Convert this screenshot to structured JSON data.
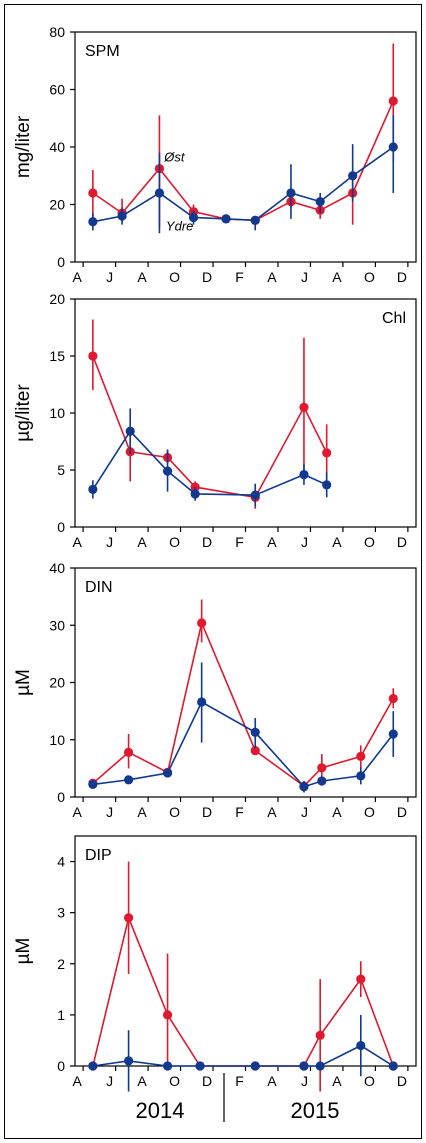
{
  "colors": {
    "ost": "#e0192f",
    "ydre": "#11398f",
    "axis": "#000000"
  },
  "year_labels": [
    "2014",
    "2015"
  ],
  "chart_data": [
    {
      "type": "line",
      "title": "SPM",
      "ylabel": "mg/liter",
      "ylim": [
        0,
        80
      ],
      "yticks": [
        0,
        20,
        40,
        60,
        80
      ],
      "xlim": [
        0,
        18.6
      ],
      "xticks": [
        {
          "x": 0.5,
          "label": "A"
        },
        {
          "x": 2.5,
          "label": "J"
        },
        {
          "x": 4.5,
          "label": "A"
        },
        {
          "x": 6.5,
          "label": "O"
        },
        {
          "x": 8.5,
          "label": "D"
        },
        {
          "x": 10.5,
          "label": "F"
        },
        {
          "x": 12.5,
          "label": "A"
        },
        {
          "x": 14.5,
          "label": "J"
        },
        {
          "x": 16.5,
          "label": "A"
        },
        {
          "x": 18.5,
          "label": "O"
        },
        {
          "x": 20.5,
          "label": "D"
        }
      ],
      "annotations": [
        {
          "text": "Øst",
          "x": 5.5,
          "y": 35
        },
        {
          "text": "Ydre",
          "x": 5.6,
          "y": 11
        }
      ],
      "series": [
        {
          "name": "Øst",
          "color": "#e0192f",
          "x": [
            1.1,
            2.9,
            5.2,
            7.3,
            9.3,
            11.1,
            13.3,
            15.1,
            17.1,
            19.6
          ],
          "y": [
            24,
            17,
            32.5,
            17.5,
            15,
            14.5,
            21,
            18,
            24,
            56
          ],
          "err_lo": [
            15,
            14,
            12,
            15,
            14,
            13,
            19,
            15,
            13,
            35
          ],
          "err_hi": [
            32,
            22,
            51,
            20,
            16,
            16,
            24,
            20,
            30,
            76
          ]
        },
        {
          "name": "Ydre",
          "color": "#11398f",
          "x": [
            1.1,
            2.9,
            5.2,
            7.3,
            9.3,
            11.1,
            13.3,
            15.1,
            17.1,
            19.6
          ],
          "y": [
            14,
            16,
            24,
            15.5,
            15,
            14.5,
            24,
            21,
            30,
            40
          ],
          "err_lo": [
            11,
            13,
            10,
            13,
            14,
            11,
            15,
            17,
            21,
            24
          ],
          "err_hi": [
            17,
            19,
            38,
            18,
            16,
            16,
            34,
            24,
            41,
            51
          ]
        }
      ]
    },
    {
      "type": "line",
      "title": "Chl",
      "ylabel": "µg/liter",
      "ylim": [
        0,
        20
      ],
      "yticks": [
        0,
        5,
        10,
        15,
        20
      ],
      "xlim": [
        0,
        21
      ],
      "xticks": [
        {
          "x": 0.5,
          "label": "A"
        },
        {
          "x": 2.5,
          "label": "J"
        },
        {
          "x": 4.5,
          "label": "A"
        },
        {
          "x": 6.5,
          "label": "O"
        },
        {
          "x": 8.5,
          "label": "D"
        },
        {
          "x": 10.5,
          "label": "F"
        },
        {
          "x": 12.5,
          "label": "A"
        },
        {
          "x": 14.5,
          "label": "J"
        },
        {
          "x": 16.5,
          "label": "A"
        },
        {
          "x": 18.5,
          "label": "O"
        },
        {
          "x": 20.5,
          "label": "D"
        }
      ],
      "annotations": [],
      "series": [
        {
          "name": "Øst",
          "color": "#e0192f",
          "x": [
            1.1,
            3.4,
            5.7,
            7.4,
            11.1,
            14.1,
            15.5
          ],
          "y": [
            15,
            6.6,
            6.1,
            3.5,
            2.6,
            10.5,
            6.5
          ],
          "err_lo": [
            12,
            4,
            5.5,
            3,
            1.6,
            4.5,
            4
          ],
          "err_hi": [
            18.2,
            8.8,
            6.8,
            4,
            3.6,
            16.6,
            9
          ]
        },
        {
          "name": "Ydre",
          "color": "#11398f",
          "x": [
            1.1,
            3.4,
            5.7,
            7.4,
            11.1,
            14.1,
            15.5
          ],
          "y": [
            3.3,
            8.4,
            4.9,
            2.9,
            2.8,
            4.6,
            3.7
          ],
          "err_lo": [
            2.5,
            6.4,
            3.1,
            2.3,
            1.8,
            3.7,
            2.6
          ],
          "err_hi": [
            4.1,
            10.4,
            6.8,
            3.5,
            3.8,
            5.5,
            4.8
          ]
        }
      ]
    },
    {
      "type": "line",
      "title": "DIN",
      "ylabel": "µM",
      "ylim": [
        0,
        40
      ],
      "yticks": [
        0,
        10,
        20,
        30,
        40
      ],
      "xlim": [
        0,
        21
      ],
      "xticks": [
        {
          "x": 0.5,
          "label": "A"
        },
        {
          "x": 2.5,
          "label": "J"
        },
        {
          "x": 4.5,
          "label": "A"
        },
        {
          "x": 6.5,
          "label": "O"
        },
        {
          "x": 8.5,
          "label": "D"
        },
        {
          "x": 10.5,
          "label": "F"
        },
        {
          "x": 12.5,
          "label": "A"
        },
        {
          "x": 14.5,
          "label": "J"
        },
        {
          "x": 16.5,
          "label": "A"
        },
        {
          "x": 18.5,
          "label": "O"
        },
        {
          "x": 20.5,
          "label": "D"
        }
      ],
      "annotations": [],
      "series": [
        {
          "name": "Øst",
          "color": "#e0192f",
          "x": [
            1.1,
            3.3,
            5.7,
            7.8,
            11.1,
            14.1,
            15.2,
            17.6,
            19.6
          ],
          "y": [
            2.4,
            7.8,
            4.3,
            30.4,
            8.1,
            1.9,
            5.1,
            7.1,
            17.2
          ],
          "err_lo": [
            2,
            5,
            3.8,
            27,
            7.5,
            1.5,
            3.5,
            5,
            15.5
          ],
          "err_hi": [
            2.8,
            11,
            4.8,
            34.5,
            8.7,
            2.3,
            7.5,
            9,
            19
          ]
        },
        {
          "name": "Ydre",
          "color": "#11398f",
          "x": [
            1.1,
            3.3,
            5.7,
            7.8,
            11.1,
            14.1,
            15.2,
            17.6,
            19.6
          ],
          "y": [
            2.2,
            3,
            4.2,
            16.6,
            11.3,
            1.8,
            2.8,
            3.7,
            11
          ],
          "err_lo": [
            1.8,
            2.5,
            3.8,
            9.5,
            8.5,
            0.8,
            2.3,
            2.2,
            7
          ],
          "err_hi": [
            2.6,
            3.5,
            4.6,
            23.5,
            13.8,
            2.8,
            3.3,
            5.2,
            15
          ]
        }
      ]
    },
    {
      "type": "line",
      "title": "DIP",
      "ylabel": "µM",
      "ylim": [
        0,
        4.5
      ],
      "yticks": [
        0,
        1,
        2,
        3,
        4
      ],
      "xlim": [
        0,
        21
      ],
      "xticks": [
        {
          "x": 0.5,
          "label": "A"
        },
        {
          "x": 2.5,
          "label": "J"
        },
        {
          "x": 4.5,
          "label": "A"
        },
        {
          "x": 6.5,
          "label": "O"
        },
        {
          "x": 8.5,
          "label": "D"
        },
        {
          "x": 10.5,
          "label": "F"
        },
        {
          "x": 12.5,
          "label": "A"
        },
        {
          "x": 14.5,
          "label": "J"
        },
        {
          "x": 16.5,
          "label": "A"
        },
        {
          "x": 18.5,
          "label": "O"
        },
        {
          "x": 20.5,
          "label": "D"
        }
      ],
      "annotations": [],
      "series": [
        {
          "name": "Øst",
          "color": "#e0192f",
          "x": [
            1.1,
            3.3,
            5.7,
            7.7,
            11.1,
            14.1,
            15.1,
            17.6,
            19.6
          ],
          "y": [
            0,
            2.9,
            1,
            0,
            0,
            0,
            0.6,
            1.7,
            0
          ],
          "err_lo": [
            0,
            1.8,
            0,
            0,
            0,
            0,
            -0.5,
            1.35,
            0
          ],
          "err_hi": [
            0,
            4,
            2.2,
            0,
            0,
            0,
            1.7,
            2.05,
            0
          ]
        },
        {
          "name": "Ydre",
          "color": "#11398f",
          "x": [
            1.1,
            3.3,
            5.7,
            7.7,
            11.1,
            14.1,
            15.1,
            17.6,
            19.6
          ],
          "y": [
            0,
            0.1,
            0,
            0,
            0,
            0,
            0,
            0.4,
            0
          ],
          "err_lo": [
            0,
            -0.5,
            0,
            0,
            0,
            0,
            0,
            -0.2,
            0
          ],
          "err_hi": [
            0,
            0.7,
            0,
            0,
            0,
            0,
            0,
            1,
            0
          ]
        }
      ]
    }
  ]
}
